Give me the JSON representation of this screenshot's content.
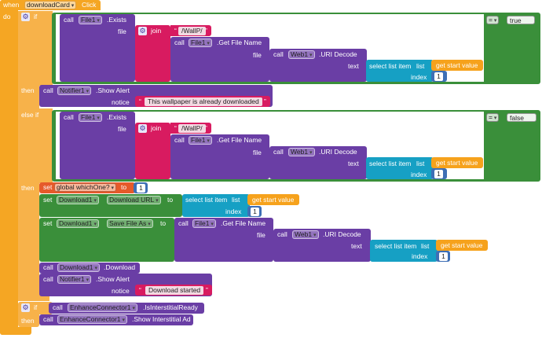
{
  "colors": {
    "orange": "#f5a623",
    "purple": "#6a3ea5",
    "magenta": "#d81b60",
    "teal": "#16a0c4",
    "green": "#3a8f3a",
    "gold": "#f6a21c",
    "red": "#e65a2a",
    "blue": "#3e6fb5"
  },
  "event": {
    "when": "when",
    "component": "downloadCard",
    "event": "Click",
    "do": "do"
  },
  "labels": {
    "if": "if",
    "then": "then",
    "else_if": "else if",
    "call": "call",
    "set": "set",
    "to": "to",
    "join": "join",
    "file": "file",
    "text": "text",
    "index": "index",
    "notice": "notice",
    "select_list_item": "select list item",
    "list": "list",
    "get_start_value": "get start value",
    "exists": ".Exists",
    "get_file_name": ".Get File Name",
    "uri_decode": ".URI Decode",
    "show_alert": ".Show Alert",
    "download": ".Download",
    "is_interstitial_ready": ".IsInterstitialReady",
    "show_interstitial_ad": ".Show Interstitial Ad",
    "download_url": "Download URL",
    "save_file_as": "Save File As",
    "eq": "="
  },
  "components": {
    "file": "File1",
    "web": "Web1",
    "notifier": "Notifier1",
    "download": "Download1",
    "enhance": "EnhanceConnector1"
  },
  "values": {
    "wallp_path": "/WallP/",
    "true": "true",
    "false": "false",
    "one": "1",
    "already_downloaded": "This wallpaper is already downloaded",
    "download_started": "Download started",
    "global_var": "global whichOne?"
  }
}
